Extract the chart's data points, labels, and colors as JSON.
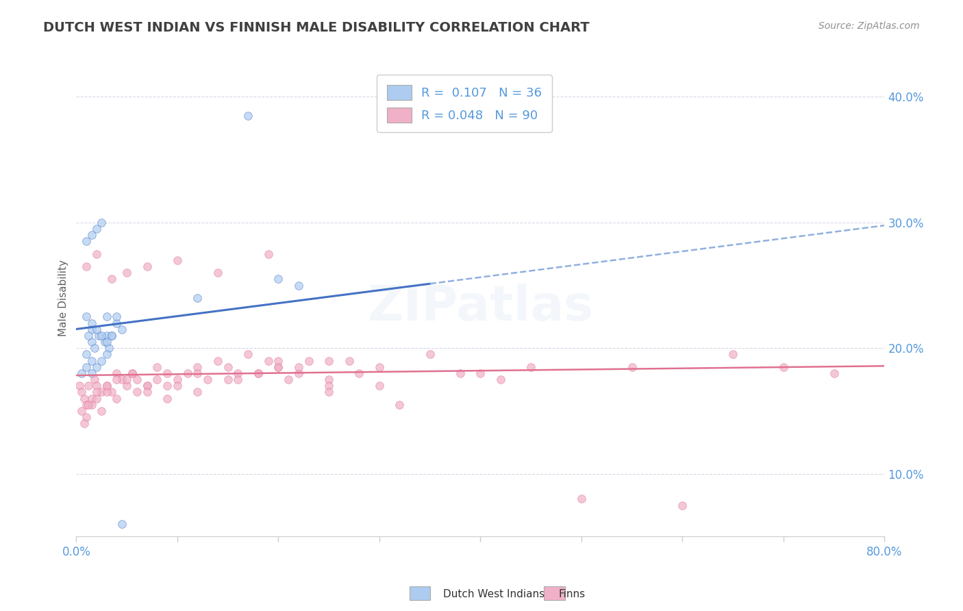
{
  "title": "DUTCH WEST INDIAN VS FINNISH MALE DISABILITY CORRELATION CHART",
  "source": "Source: ZipAtlas.com",
  "ylabel": "Male Disability",
  "xmin": 0.0,
  "xmax": 80.0,
  "ymin": 5.0,
  "ymax": 43.0,
  "yticks": [
    10.0,
    20.0,
    30.0,
    40.0
  ],
  "blue_R": 0.107,
  "pink_R": 0.048,
  "blue_N": 36,
  "pink_N": 90,
  "dutch_x": [
    1.5,
    1.5,
    1.8,
    2.2,
    2.8,
    3.0,
    3.2,
    3.5,
    4.0,
    4.5,
    1.0,
    1.2,
    1.5,
    2.0,
    2.5,
    3.0,
    3.5,
    4.0,
    1.0,
    1.5,
    2.0,
    2.5,
    1.0,
    1.5,
    2.0,
    2.5,
    3.0,
    0.5,
    1.0,
    1.5,
    12.0,
    20.0,
    22.0,
    3.0,
    4.5,
    17.0
  ],
  "dutch_y": [
    21.5,
    20.5,
    20.0,
    21.0,
    20.5,
    21.0,
    20.0,
    21.0,
    22.0,
    21.5,
    22.5,
    21.0,
    22.0,
    21.5,
    21.0,
    20.5,
    21.0,
    22.5,
    28.5,
    29.0,
    29.5,
    30.0,
    19.5,
    19.0,
    18.5,
    19.0,
    19.5,
    18.0,
    18.5,
    18.0,
    24.0,
    25.5,
    25.0,
    22.5,
    6.0,
    38.5
  ],
  "finn_x": [
    0.3,
    0.5,
    0.8,
    1.0,
    1.2,
    1.5,
    1.8,
    2.0,
    2.5,
    3.0,
    3.5,
    4.0,
    4.5,
    5.0,
    5.5,
    6.0,
    7.0,
    8.0,
    9.0,
    10.0,
    11.0,
    12.0,
    13.0,
    14.0,
    15.0,
    16.0,
    17.0,
    18.0,
    19.0,
    20.0,
    21.0,
    22.0,
    23.0,
    25.0,
    27.0,
    30.0,
    35.0,
    40.0,
    45.0,
    50.0,
    0.5,
    1.0,
    1.5,
    2.0,
    2.5,
    3.0,
    4.0,
    5.0,
    6.0,
    7.0,
    8.0,
    9.0,
    10.0,
    12.0,
    15.0,
    18.0,
    20.0,
    22.0,
    25.0,
    28.0,
    0.8,
    1.2,
    2.0,
    3.0,
    4.0,
    5.5,
    7.0,
    9.0,
    12.0,
    16.0,
    20.0,
    25.0,
    30.0,
    38.0,
    42.0,
    55.0,
    60.0,
    65.0,
    70.0,
    75.0,
    1.0,
    2.0,
    3.5,
    5.0,
    7.0,
    10.0,
    14.0,
    19.0,
    25.0,
    32.0
  ],
  "finn_y": [
    17.0,
    16.5,
    16.0,
    15.5,
    17.0,
    16.0,
    17.5,
    17.0,
    16.5,
    17.0,
    16.5,
    18.0,
    17.5,
    17.0,
    18.0,
    17.5,
    17.0,
    18.5,
    18.0,
    17.5,
    18.0,
    18.5,
    17.5,
    19.0,
    18.5,
    18.0,
    19.5,
    18.0,
    19.0,
    18.5,
    17.5,
    18.0,
    19.0,
    17.5,
    19.0,
    18.5,
    19.5,
    18.0,
    18.5,
    8.0,
    15.0,
    14.5,
    15.5,
    16.0,
    15.0,
    16.5,
    16.0,
    17.5,
    16.5,
    17.0,
    17.5,
    16.0,
    17.0,
    16.5,
    17.5,
    18.0,
    19.0,
    18.5,
    17.0,
    18.0,
    14.0,
    15.5,
    16.5,
    17.0,
    17.5,
    18.0,
    16.5,
    17.0,
    18.0,
    17.5,
    18.5,
    19.0,
    17.0,
    18.0,
    17.5,
    18.5,
    7.5,
    19.5,
    18.5,
    18.0,
    26.5,
    27.5,
    25.5,
    26.0,
    26.5,
    27.0,
    26.0,
    27.5,
    16.5,
    15.5
  ],
  "blue_line_color": "#4472c4",
  "blue_dash_color": "#90b0e0",
  "pink_line_color": "#e07090",
  "dutch_scatter_color": "#aeccf0",
  "finn_scatter_color": "#f0b0c8",
  "scatter_alpha": 0.7,
  "scatter_size": 70,
  "background_color": "#ffffff",
  "grid_color": "#d8d8e8",
  "title_color": "#404040",
  "source_color": "#909090",
  "axis_label_color": "#606060",
  "tick_color": "#5599dd",
  "legend_text_color": "#5599dd"
}
